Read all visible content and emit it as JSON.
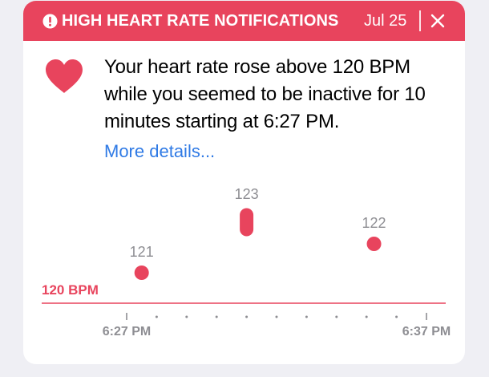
{
  "header": {
    "title": "HIGH HEART RATE NOTIFICATIONS",
    "date": "Jul 25",
    "alert_icon": "exclamation-circle-icon",
    "close_icon": "close-icon"
  },
  "body": {
    "heart_icon": "heart-icon",
    "message": "Your heart rate rose above 120 BPM while you seemed to be inactive for 10 minutes starting at 6:27 PM.",
    "more_link": "More details..."
  },
  "colors": {
    "accent": "#e8445d",
    "link": "#2f7ae5",
    "label_gray": "#8e8e93",
    "background": "#efeff4"
  },
  "chart_data": {
    "type": "scatter",
    "threshold_label": "120 BPM",
    "threshold": 120,
    "x_tick_labels": [
      "6:27 PM",
      "6:37 PM"
    ],
    "x_range_minutes": [
      0,
      10
    ],
    "points": [
      {
        "minute": 0.5,
        "bpm_min": 121,
        "bpm_max": 121,
        "label": "121"
      },
      {
        "minute": 4.0,
        "bpm_min": 122.5,
        "bpm_max": 123,
        "label": "123"
      },
      {
        "minute": 8.25,
        "bpm_min": 122,
        "bpm_max": 122,
        "label": "122"
      }
    ]
  }
}
